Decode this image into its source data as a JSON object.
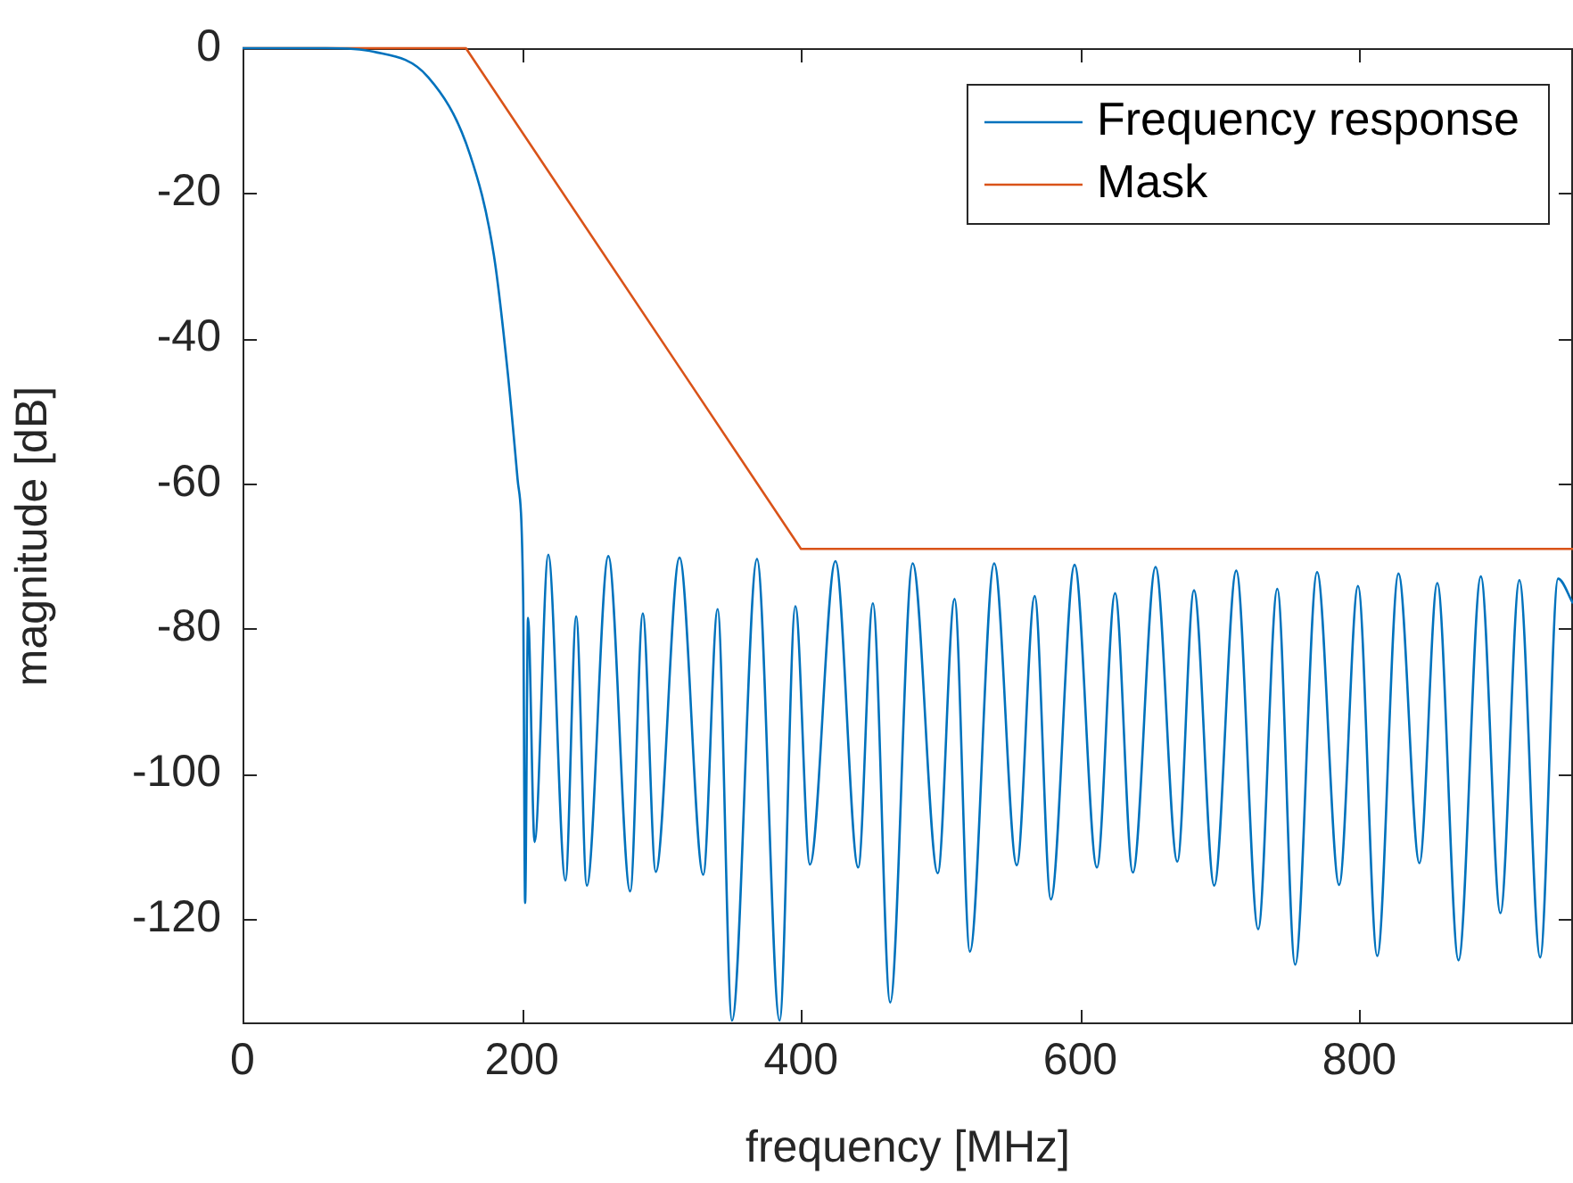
{
  "chart_data": {
    "type": "line",
    "xlabel": "frequency [MHz]",
    "ylabel": "magnitude [dB]",
    "xlim": [
      0,
      953
    ],
    "ylim": [
      -134.5,
      0
    ],
    "xticks": [
      0,
      200,
      400,
      600,
      800
    ],
    "yticks": [
      -120,
      -100,
      -80,
      -60,
      -40,
      -20,
      0
    ],
    "legend": "top right",
    "marker": "none",
    "line_style": "solid",
    "series": [
      {
        "name": "Frequency response",
        "color": "#0072bd",
        "x": [
          0,
          60,
          94,
          133,
          163,
          180,
          190,
          197,
          201,
          202.4,
          204.5,
          209.2,
          219,
          231.3,
          239,
          246.6,
          262,
          277.7,
          286.7,
          296,
          313,
          330,
          340.3,
          350.6,
          368.5,
          384.7,
          396,
          406.4,
          424.7,
          441,
          451.5,
          463.9,
          480,
          498,
          510,
          521,
          538.4,
          554.6,
          567.4,
          579,
          596,
          612,
          625,
          637.7,
          654,
          669.6,
          681.5,
          696,
          711.8,
          727.5,
          741.2,
          754,
          769.7,
          785.5,
          799,
          812.8,
          828,
          843,
          855.8,
          871,
          887,
          901,
          914.6,
          929.5,
          942.3,
          953
        ],
        "values": [
          0,
          0,
          -0.5,
          -4,
          -14.7,
          -28.5,
          -44.8,
          -59.4,
          -75.7,
          -117.8,
          -78.5,
          -109.4,
          -69.8,
          -114.7,
          -78.3,
          -115.4,
          -70,
          -116.2,
          -77.9,
          -113.5,
          -70.2,
          -113.9,
          -77.3,
          -134,
          -70.4,
          -134,
          -76.9,
          -112.5,
          -70.7,
          -112.9,
          -76.5,
          -131.5,
          -71,
          -113.7,
          -75.9,
          -124.5,
          -71,
          -112.6,
          -75.5,
          -117.3,
          -71.2,
          -112.9,
          -75.1,
          -113.6,
          -71.5,
          -112.1,
          -74.7,
          -115.4,
          -72,
          -121.4,
          -74.5,
          -126.3,
          -72.2,
          -115.3,
          -74.1,
          -125.1,
          -72.4,
          -112.3,
          -73.7,
          -125.7,
          -72.8,
          -119.2,
          -73.3,
          -125.3,
          -73.1,
          -76.5
        ]
      },
      {
        "name": "Mask",
        "color": "#d95319",
        "x": [
          0,
          160,
          400,
          953
        ],
        "values": [
          0,
          0,
          -69,
          -69
        ]
      }
    ]
  }
}
